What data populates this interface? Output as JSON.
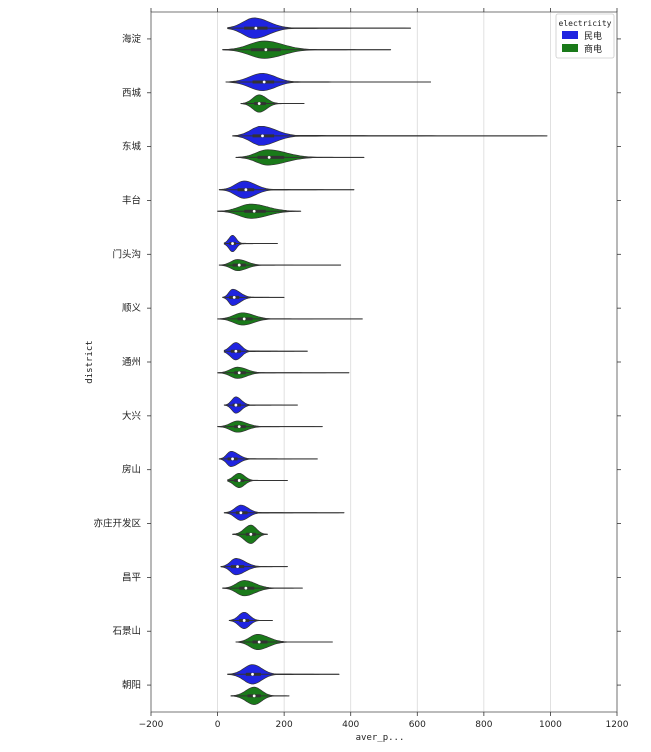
{
  "chart_data": {
    "type": "violin",
    "orientation": "horizontal",
    "xlabel": "aver_p...",
    "ylabel": "district",
    "xlim": [
      -200,
      1200
    ],
    "xticks": [
      {
        "value": -200,
        "label": "−200"
      },
      {
        "value": 0,
        "label": "0"
      },
      {
        "value": 200,
        "label": "200"
      },
      {
        "value": 400,
        "label": "400"
      },
      {
        "value": 600,
        "label": "600"
      },
      {
        "value": 800,
        "label": "800"
      },
      {
        "value": 1000,
        "label": "1000"
      },
      {
        "value": 1200,
        "label": "1200"
      }
    ],
    "grid": true,
    "legend": {
      "title": "electricity",
      "position": "top-right",
      "entries": [
        {
          "label": "民电",
          "color": "#1f24e0"
        },
        {
          "label": "商电",
          "color": "#1a7a1a"
        }
      ]
    },
    "colors": {
      "民电": "#1f24e0",
      "商电": "#1a7a1a"
    },
    "categories": [
      "海淀",
      "西城",
      "东城",
      "丰台",
      "门头沟",
      "顺义",
      "通州",
      "大兴",
      "房山",
      "亦庄开发区",
      "昌平",
      "石景山",
      "朝阳"
    ],
    "series": [
      {
        "name": "民电",
        "color": "#1f24e0",
        "violins": [
          {
            "min": 30,
            "q1": 80,
            "median": 115,
            "q3": 150,
            "max": 580,
            "peak": 110,
            "width": 1.0
          },
          {
            "min": 25,
            "q1": 105,
            "median": 140,
            "q3": 170,
            "max": 640,
            "peak": 135,
            "width": 0.85
          },
          {
            "min": 45,
            "q1": 105,
            "median": 135,
            "q3": 170,
            "max": 990,
            "peak": 130,
            "width": 0.95
          },
          {
            "min": 5,
            "q1": 60,
            "median": 85,
            "q3": 110,
            "max": 410,
            "peak": 80,
            "width": 0.85
          },
          {
            "min": 20,
            "q1": 35,
            "median": 45,
            "q3": 55,
            "max": 180,
            "peak": 45,
            "width": 0.8
          },
          {
            "min": 15,
            "q1": 35,
            "median": 50,
            "q3": 65,
            "max": 200,
            "peak": 45,
            "width": 0.8
          },
          {
            "min": 20,
            "q1": 40,
            "median": 55,
            "q3": 70,
            "max": 270,
            "peak": 55,
            "width": 0.85
          },
          {
            "min": 20,
            "q1": 45,
            "median": 55,
            "q3": 70,
            "max": 240,
            "peak": 55,
            "width": 0.8
          },
          {
            "min": 5,
            "q1": 30,
            "median": 45,
            "q3": 60,
            "max": 300,
            "peak": 40,
            "width": 0.75
          },
          {
            "min": 20,
            "q1": 55,
            "median": 70,
            "q3": 90,
            "max": 380,
            "peak": 70,
            "width": 0.75
          },
          {
            "min": 10,
            "q1": 40,
            "median": 60,
            "q3": 80,
            "max": 210,
            "peak": 55,
            "width": 0.8
          },
          {
            "min": 35,
            "q1": 65,
            "median": 80,
            "q3": 95,
            "max": 165,
            "peak": 80,
            "width": 0.8
          },
          {
            "min": 30,
            "q1": 85,
            "median": 105,
            "q3": 130,
            "max": 365,
            "peak": 105,
            "width": 0.95
          }
        ]
      },
      {
        "name": "商电",
        "color": "#1a7a1a",
        "violins": [
          {
            "min": 15,
            "q1": 100,
            "median": 145,
            "q3": 190,
            "max": 520,
            "peak": 140,
            "width": 0.85
          },
          {
            "min": 70,
            "q1": 110,
            "median": 125,
            "q3": 145,
            "max": 260,
            "peak": 125,
            "width": 0.85
          },
          {
            "min": 55,
            "q1": 120,
            "median": 155,
            "q3": 200,
            "max": 440,
            "peak": 150,
            "width": 0.75
          },
          {
            "min": 0,
            "q1": 80,
            "median": 110,
            "q3": 145,
            "max": 250,
            "peak": 100,
            "width": 0.7
          },
          {
            "min": 5,
            "q1": 45,
            "median": 65,
            "q3": 85,
            "max": 370,
            "peak": 60,
            "width": 0.55
          },
          {
            "min": 0,
            "q1": 60,
            "median": 80,
            "q3": 105,
            "max": 435,
            "peak": 75,
            "width": 0.6
          },
          {
            "min": 0,
            "q1": 50,
            "median": 65,
            "q3": 85,
            "max": 395,
            "peak": 60,
            "width": 0.55
          },
          {
            "min": 0,
            "q1": 50,
            "median": 65,
            "q3": 85,
            "max": 315,
            "peak": 60,
            "width": 0.55
          },
          {
            "min": 30,
            "q1": 50,
            "median": 65,
            "q3": 80,
            "max": 210,
            "peak": 65,
            "width": 0.7
          },
          {
            "min": 45,
            "q1": 85,
            "median": 100,
            "q3": 115,
            "max": 150,
            "peak": 100,
            "width": 0.9
          },
          {
            "min": 15,
            "q1": 65,
            "median": 85,
            "q3": 110,
            "max": 255,
            "peak": 80,
            "width": 0.75
          },
          {
            "min": 55,
            "q1": 105,
            "median": 125,
            "q3": 150,
            "max": 345,
            "peak": 120,
            "width": 0.75
          },
          {
            "min": 40,
            "q1": 90,
            "median": 110,
            "q3": 130,
            "max": 215,
            "peak": 110,
            "width": 0.85
          }
        ]
      }
    ]
  }
}
